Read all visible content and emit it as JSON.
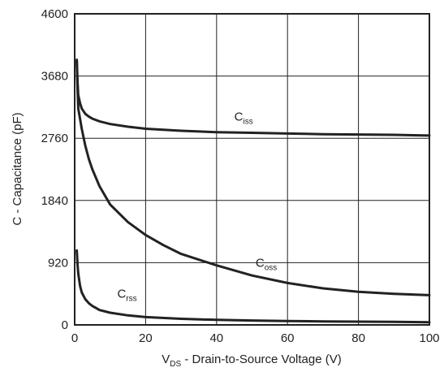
{
  "chart_data": {
    "type": "line",
    "xlabel": {
      "main": "V",
      "sub": "DS",
      "rest": " - Drain-to-Source Voltage (V)"
    },
    "ylabel": "C - Capacitance (pF)",
    "xlim": [
      0,
      100
    ],
    "ylim": [
      0,
      4600
    ],
    "xticks": [
      0,
      20,
      40,
      60,
      80,
      100
    ],
    "yticks": [
      0,
      920,
      1840,
      2760,
      3680,
      4600
    ],
    "grid": true,
    "series": [
      {
        "name": "Ciss",
        "label_main": "C",
        "label_sub": "iss",
        "x": [
          0.6,
          0.8,
          1,
          1.5,
          2,
          3,
          4,
          5,
          7,
          10,
          15,
          20,
          30,
          40,
          50,
          60,
          70,
          80,
          90,
          100
        ],
        "y": [
          3920,
          3600,
          3400,
          3280,
          3200,
          3120,
          3080,
          3050,
          3010,
          2970,
          2930,
          2900,
          2870,
          2850,
          2840,
          2830,
          2820,
          2815,
          2810,
          2800
        ]
      },
      {
        "name": "Coss",
        "label_main": "C",
        "label_sub": "oss",
        "x": [
          0.6,
          0.8,
          1,
          1.5,
          2,
          3,
          4,
          5,
          7,
          10,
          15,
          20,
          25,
          30,
          40,
          50,
          60,
          70,
          80,
          90,
          100
        ],
        "y": [
          3900,
          3500,
          3200,
          3050,
          2900,
          2650,
          2450,
          2300,
          2050,
          1780,
          1520,
          1330,
          1180,
          1050,
          880,
          730,
          620,
          540,
          490,
          460,
          440
        ]
      },
      {
        "name": "Crss",
        "label_main": "C",
        "label_sub": "rss",
        "x": [
          0.6,
          0.8,
          1,
          1.5,
          2,
          3,
          4,
          5,
          7,
          10,
          15,
          20,
          30,
          40,
          50,
          60,
          70,
          80,
          90,
          100
        ],
        "y": [
          1100,
          900,
          760,
          580,
          480,
          380,
          320,
          280,
          220,
          180,
          140,
          115,
          90,
          75,
          65,
          58,
          52,
          48,
          44,
          40
        ]
      }
    ]
  }
}
